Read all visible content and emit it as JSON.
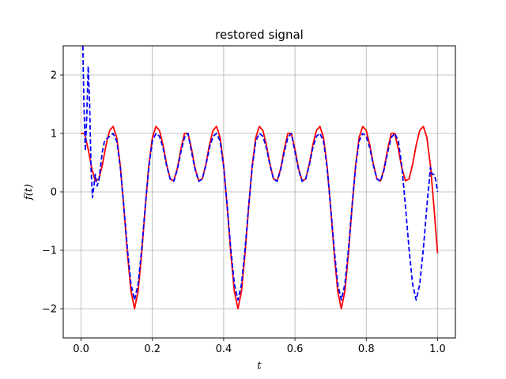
{
  "chart_data": {
    "type": "line",
    "title": "restored signal",
    "xlabel": "t",
    "ylabel": "f(t)",
    "xlim": [
      -0.05,
      1.05
    ],
    "ylim": [
      -2.5,
      2.5
    ],
    "grid": true,
    "x_ticks": [
      0.0,
      0.2,
      0.4,
      0.6,
      0.8,
      1.0
    ],
    "x_tick_labels": [
      "0.0",
      "0.2",
      "0.4",
      "0.6",
      "0.8",
      "1.0"
    ],
    "y_ticks": [
      -2,
      -1,
      0,
      1,
      2
    ],
    "y_tick_labels": [
      "−2",
      "−1",
      "0",
      "1",
      "2"
    ],
    "series": [
      {
        "style": "solid",
        "color": "#ff0000",
        "x": [
          0.0,
          0.01,
          0.02,
          0.03,
          0.04,
          0.05,
          0.06,
          0.07,
          0.08,
          0.09,
          0.1,
          0.11,
          0.12,
          0.13,
          0.14,
          0.15,
          0.16,
          0.17,
          0.18,
          0.19,
          0.2,
          0.21,
          0.22,
          0.23,
          0.24,
          0.25,
          0.26,
          0.27,
          0.28,
          0.29,
          0.3,
          0.31,
          0.32,
          0.33,
          0.34,
          0.35,
          0.36,
          0.37,
          0.38,
          0.39,
          0.4,
          0.41,
          0.42,
          0.43,
          0.44,
          0.45,
          0.46,
          0.47,
          0.48,
          0.49,
          0.5,
          0.51,
          0.52,
          0.53,
          0.54,
          0.55,
          0.56,
          0.57,
          0.58,
          0.59,
          0.6,
          0.61,
          0.62,
          0.63,
          0.64,
          0.65,
          0.66,
          0.67,
          0.68,
          0.69,
          0.7,
          0.71,
          0.72,
          0.73,
          0.74,
          0.75,
          0.76,
          0.77,
          0.78,
          0.79,
          0.8,
          0.81,
          0.82,
          0.83,
          0.84,
          0.85,
          0.86,
          0.87,
          0.88,
          0.89,
          0.9,
          0.91,
          0.92,
          0.93,
          0.94,
          0.95,
          0.96,
          0.97,
          0.98,
          0.99,
          1.0
        ],
        "y": [
          1.0,
          1.0,
          0.73,
          0.4,
          0.19,
          0.22,
          0.47,
          0.8,
          1.05,
          1.12,
          0.93,
          0.45,
          -0.27,
          -1.05,
          -1.7,
          -2.0,
          -1.7,
          -1.05,
          -0.27,
          0.45,
          0.93,
          1.12,
          1.05,
          0.8,
          0.47,
          0.22,
          0.19,
          0.4,
          0.73,
          1.0,
          1.0,
          0.73,
          0.4,
          0.19,
          0.22,
          0.47,
          0.8,
          1.05,
          1.12,
          0.93,
          0.45,
          -0.27,
          -1.05,
          -1.7,
          -2.0,
          -1.7,
          -1.05,
          -0.27,
          0.45,
          0.93,
          1.12,
          1.05,
          0.8,
          0.47,
          0.22,
          0.19,
          0.4,
          0.73,
          1.0,
          1.0,
          0.73,
          0.4,
          0.19,
          0.22,
          0.47,
          0.8,
          1.05,
          1.12,
          0.93,
          0.45,
          -0.27,
          -1.05,
          -1.7,
          -2.0,
          -1.7,
          -1.05,
          -0.27,
          0.45,
          0.93,
          1.12,
          1.05,
          0.8,
          0.47,
          0.22,
          0.19,
          0.4,
          0.73,
          1.0,
          1.0,
          0.73,
          0.4,
          0.19,
          0.22,
          0.47,
          0.8,
          1.05,
          1.12,
          0.93,
          0.45,
          -0.27,
          -1.05
        ]
      },
      {
        "style": "dashed",
        "color": "#0000ff",
        "x": [
          0.005,
          0.008,
          0.012,
          0.016,
          0.02,
          0.024,
          0.028,
          0.032,
          0.036,
          0.04,
          0.045,
          0.05,
          0.055,
          0.06,
          0.065,
          0.07,
          0.08,
          0.09,
          0.1,
          0.11,
          0.12,
          0.13,
          0.14,
          0.15,
          0.16,
          0.17,
          0.18,
          0.19,
          0.2,
          0.21,
          0.22,
          0.23,
          0.24,
          0.25,
          0.26,
          0.27,
          0.28,
          0.29,
          0.3,
          0.31,
          0.32,
          0.33,
          0.34,
          0.35,
          0.36,
          0.37,
          0.38,
          0.39,
          0.4,
          0.41,
          0.42,
          0.43,
          0.44,
          0.45,
          0.46,
          0.47,
          0.48,
          0.49,
          0.5,
          0.51,
          0.52,
          0.53,
          0.54,
          0.55,
          0.56,
          0.57,
          0.58,
          0.59,
          0.6,
          0.61,
          0.62,
          0.63,
          0.64,
          0.65,
          0.66,
          0.67,
          0.68,
          0.69,
          0.7,
          0.71,
          0.72,
          0.73,
          0.74,
          0.75,
          0.76,
          0.77,
          0.78,
          0.79,
          0.8,
          0.81,
          0.82,
          0.83,
          0.84,
          0.85,
          0.86,
          0.87,
          0.88,
          0.89,
          0.9,
          0.91,
          0.92,
          0.93,
          0.94,
          0.95,
          0.96,
          0.97,
          0.98,
          0.985,
          0.99,
          0.995,
          1.0
        ],
        "y": [
          2.5,
          1.5,
          0.7,
          1.3,
          2.15,
          1.5,
          0.4,
          -0.1,
          0.1,
          0.3,
          0.1,
          0.2,
          0.45,
          0.7,
          0.85,
          0.9,
          0.95,
          1.0,
          0.87,
          0.42,
          -0.25,
          -0.98,
          -1.58,
          -1.85,
          -1.58,
          -0.98,
          -0.25,
          0.42,
          0.87,
          1.0,
          0.95,
          0.75,
          0.45,
          0.22,
          0.18,
          0.38,
          0.68,
          0.93,
          1.0,
          0.68,
          0.38,
          0.18,
          0.22,
          0.45,
          0.75,
          0.95,
          1.0,
          0.87,
          0.42,
          -0.25,
          -0.98,
          -1.58,
          -1.85,
          -1.58,
          -0.98,
          -0.25,
          0.42,
          0.87,
          1.0,
          0.95,
          0.75,
          0.45,
          0.22,
          0.18,
          0.38,
          0.68,
          0.93,
          1.0,
          0.68,
          0.38,
          0.18,
          0.22,
          0.45,
          0.75,
          0.95,
          1.0,
          0.87,
          0.42,
          -0.25,
          -0.98,
          -1.58,
          -1.85,
          -1.58,
          -0.98,
          -0.25,
          0.42,
          0.87,
          1.0,
          0.95,
          0.75,
          0.45,
          0.22,
          0.18,
          0.38,
          0.68,
          0.93,
          1.0,
          0.87,
          0.42,
          -0.25,
          -0.98,
          -1.58,
          -1.85,
          -1.58,
          -0.98,
          -0.25,
          0.42,
          0.3,
          0.3,
          0.2,
          0.0
        ]
      }
    ]
  }
}
